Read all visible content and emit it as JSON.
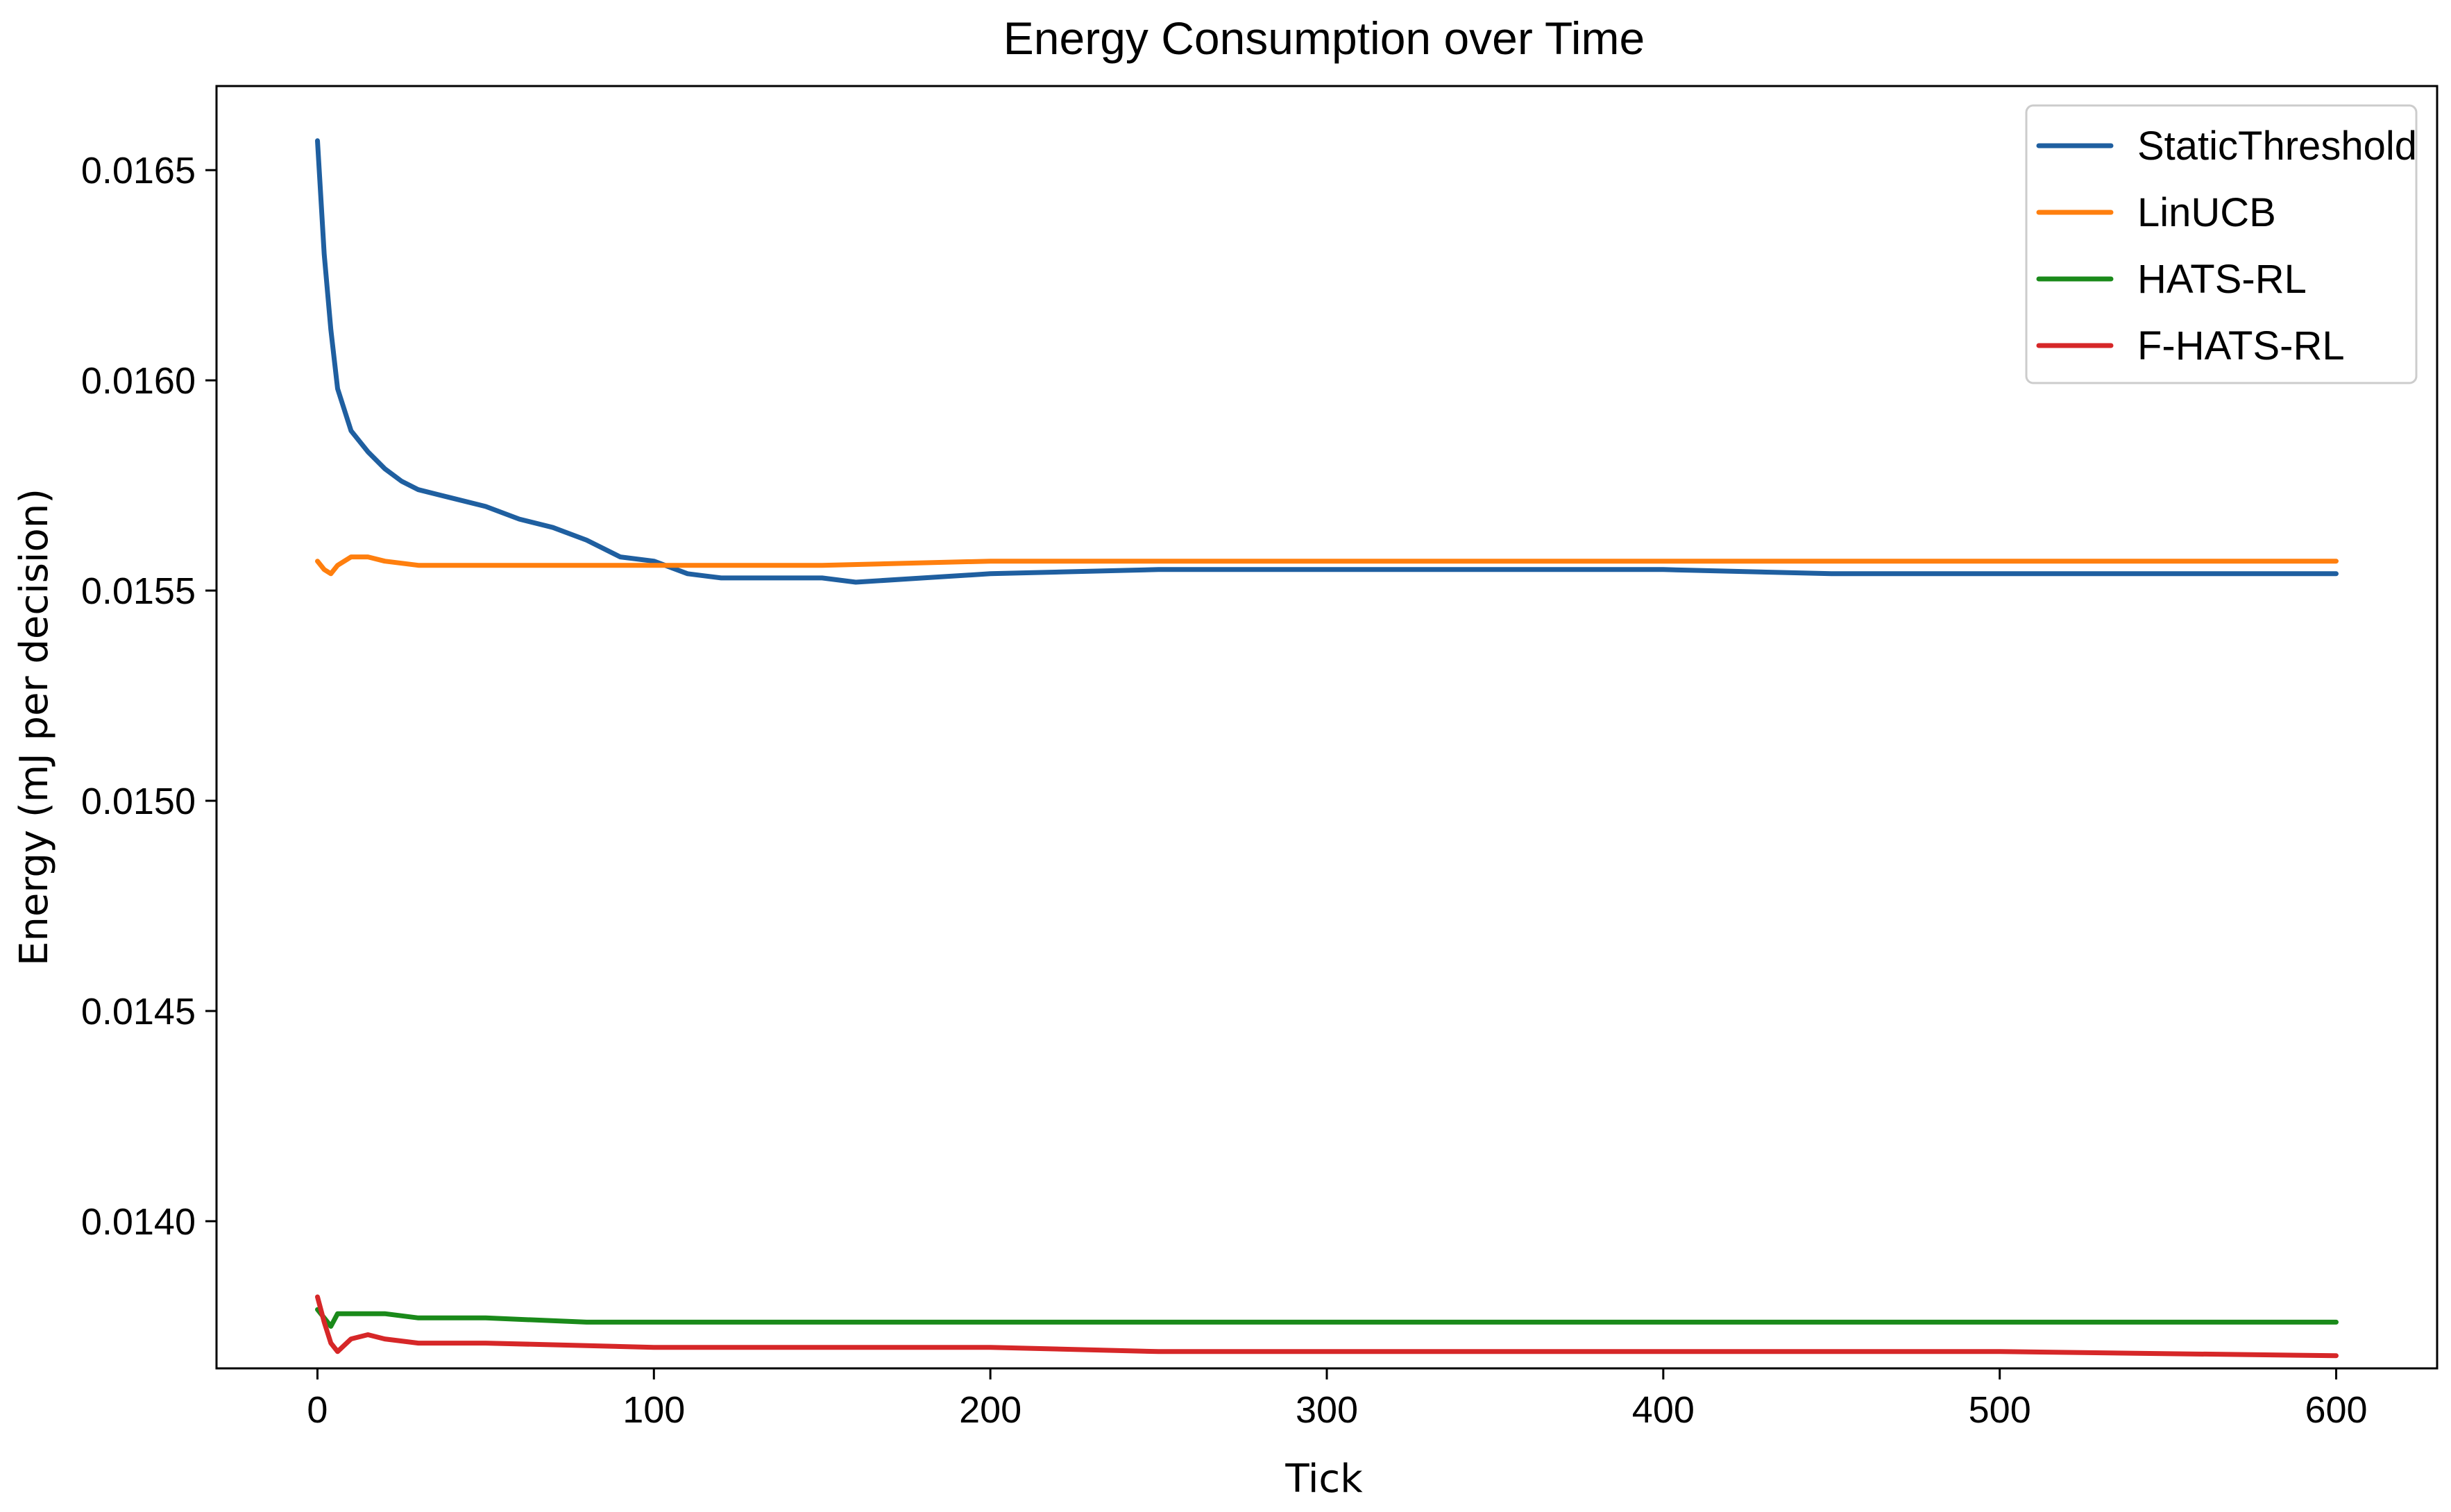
{
  "chart_data": {
    "type": "line",
    "title": "Energy Consumption over Time",
    "xlabel": "Tick",
    "ylabel": "Energy (mJ per decision)",
    "xlim": [
      -30,
      630
    ],
    "ylim": [
      0.01365,
      0.0167
    ],
    "xticks": [
      0,
      100,
      200,
      300,
      400,
      500,
      600
    ],
    "xtick_labels": [
      "0",
      "100",
      "200",
      "300",
      "400",
      "500",
      "600"
    ],
    "yticks": [
      0.014,
      0.0145,
      0.015,
      0.0155,
      0.016,
      0.0165
    ],
    "ytick_labels": [
      "0.0140",
      "0.0145",
      "0.0150",
      "0.0155",
      "0.0160",
      "0.0165"
    ],
    "grid": false,
    "legend_position": "top-right",
    "series": [
      {
        "name": "StaticThreshold",
        "color": "#1f5fa0",
        "x": [
          0,
          2,
          4,
          6,
          10,
          15,
          20,
          25,
          30,
          40,
          50,
          60,
          70,
          80,
          90,
          100,
          110,
          120,
          130,
          140,
          150,
          160,
          180,
          200,
          250,
          300,
          350,
          400,
          450,
          500,
          550,
          600
        ],
        "y": [
          0.01657,
          0.0163,
          0.01612,
          0.01598,
          0.01588,
          0.01583,
          0.01579,
          0.01576,
          0.01574,
          0.01572,
          0.0157,
          0.01567,
          0.01565,
          0.01562,
          0.01558,
          0.01557,
          0.01554,
          0.01553,
          0.01553,
          0.01553,
          0.01553,
          0.01552,
          0.01553,
          0.01554,
          0.01555,
          0.01555,
          0.01555,
          0.01555,
          0.01554,
          0.01554,
          0.01554,
          0.01554
        ]
      },
      {
        "name": "LinUCB",
        "color": "#ff7f0e",
        "x": [
          0,
          2,
          4,
          6,
          10,
          15,
          20,
          30,
          50,
          80,
          100,
          150,
          200,
          250,
          300,
          400,
          500,
          600
        ],
        "y": [
          0.01557,
          0.01555,
          0.01554,
          0.01556,
          0.01558,
          0.01558,
          0.01557,
          0.01556,
          0.01556,
          0.01556,
          0.01556,
          0.01556,
          0.01557,
          0.01557,
          0.01557,
          0.01557,
          0.01557,
          0.01557
        ]
      },
      {
        "name": "HATS-RL",
        "color": "#1a8a1a",
        "x": [
          0,
          2,
          4,
          6,
          10,
          20,
          30,
          50,
          80,
          100,
          150,
          200,
          250,
          300,
          400,
          500,
          600
        ],
        "y": [
          0.01379,
          0.01377,
          0.01375,
          0.01378,
          0.01378,
          0.01378,
          0.01377,
          0.01377,
          0.01376,
          0.01376,
          0.01376,
          0.01376,
          0.01376,
          0.01376,
          0.01376,
          0.01376,
          0.01376
        ]
      },
      {
        "name": "F-HATS-RL",
        "color": "#d62728",
        "x": [
          0,
          2,
          4,
          6,
          10,
          15,
          20,
          30,
          50,
          100,
          150,
          200,
          250,
          300,
          400,
          500,
          600
        ],
        "y": [
          0.01382,
          0.01376,
          0.01371,
          0.01369,
          0.01372,
          0.01373,
          0.01372,
          0.01371,
          0.01371,
          0.0137,
          0.0137,
          0.0137,
          0.01369,
          0.01369,
          0.01369,
          0.01369,
          0.01368
        ]
      }
    ]
  }
}
